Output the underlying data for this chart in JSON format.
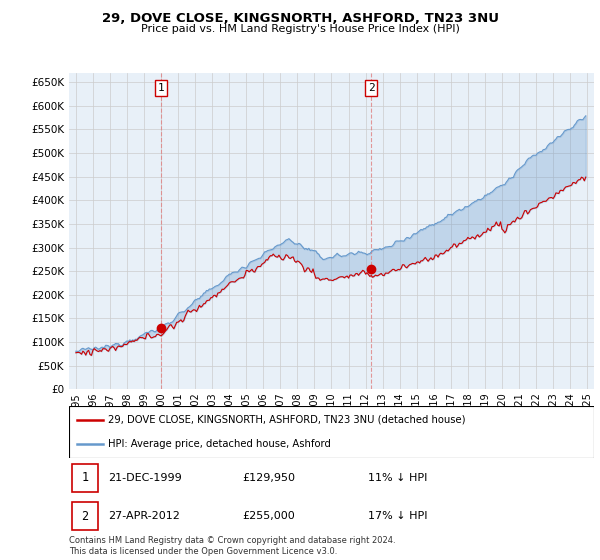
{
  "title": "29, DOVE CLOSE, KINGSNORTH, ASHFORD, TN23 3NU",
  "subtitle": "Price paid vs. HM Land Registry's House Price Index (HPI)",
  "legend_line1": "29, DOVE CLOSE, KINGSNORTH, ASHFORD, TN23 3NU (detached house)",
  "legend_line2": "HPI: Average price, detached house, Ashford",
  "footnote": "Contains HM Land Registry data © Crown copyright and database right 2024.\nThis data is licensed under the Open Government Licence v3.0.",
  "transaction1_date": "21-DEC-1999",
  "transaction1_price": "£129,950",
  "transaction1_hpi": "11% ↓ HPI",
  "transaction1_price_val": 129950,
  "transaction1_year": 2000.0,
  "transaction2_date": "27-APR-2012",
  "transaction2_price": "£255,000",
  "transaction2_hpi": "17% ↓ HPI",
  "transaction2_price_val": 255000,
  "transaction2_year": 2012.32,
  "price_color": "#cc0000",
  "hpi_color": "#6699cc",
  "fill_color": "#ddeeff",
  "background_color": "#ffffff",
  "plot_bg_color": "#e8f0f8",
  "grid_color": "#cccccc",
  "ylim_min": 0,
  "ylim_max": 670000,
  "ytick_step": 50000,
  "start_year": 1995,
  "end_year": 2025
}
